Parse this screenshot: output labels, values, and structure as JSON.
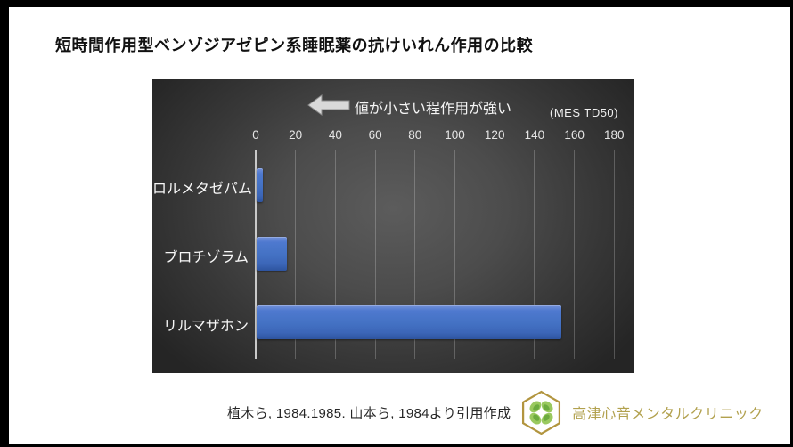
{
  "page": {
    "title": "短時間作用型ベンゾジアゼピン系睡眠薬の抗けいれん作用の比較",
    "source_note": "植木ら, 1984.1985. 山本ら, 1984より引用作成",
    "clinic_name": "高津心音メンタルクリニック"
  },
  "chart_data": {
    "type": "bar",
    "orientation": "horizontal",
    "annotation": "値が小さい程作用が強い",
    "unit_label": "(MES TD50)",
    "categories": [
      "ロルメタゼパム",
      "ブロチゾラム",
      "リルマザホン"
    ],
    "values": [
      3,
      15,
      153
    ],
    "xlim": [
      0,
      180
    ],
    "x_ticks": [
      0,
      20,
      40,
      60,
      80,
      100,
      120,
      140,
      160,
      180
    ],
    "grid": true,
    "legend": "none",
    "bar_color": "#4472c4",
    "plot_background": "dark gray radial gradient",
    "text_color": "#f5f5f5"
  },
  "icons": {
    "left_arrow": "left-block-arrow",
    "clinic_logo": "gold-hexagon-green-clover"
  },
  "colors": {
    "accent_bar": "#4472c4",
    "frame": "#000000",
    "page_bg": "#ffffff",
    "chart_bg_center": "#5c5c5c",
    "chart_bg_edge": "#252525",
    "gold": "#b2953f",
    "clinic_text": "#b2a14e",
    "leaf_light": "#9ac95f",
    "leaf_dark": "#6cab3f"
  }
}
